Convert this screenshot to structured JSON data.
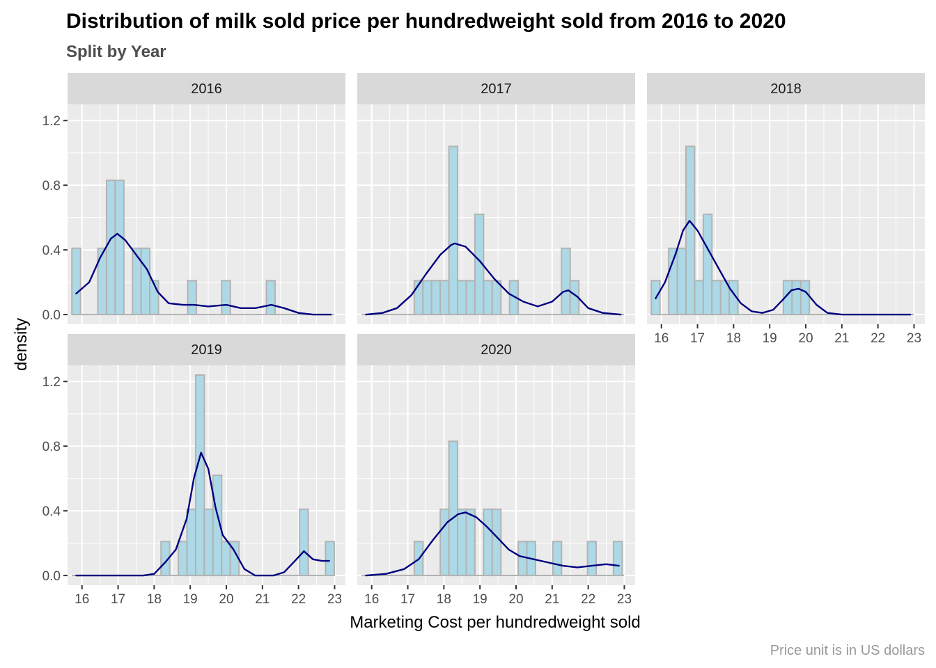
{
  "title": "Distribution of milk sold price per hundredweight sold from 2016 to 2020",
  "subtitle": "Split by Year",
  "caption": "Price unit is in US dollars",
  "chart_data": {
    "type": "histogram",
    "facet_by": "Year",
    "xlabel": "Marketing Cost per hundredweight sold",
    "ylabel": "density",
    "xlim": [
      15.6,
      23.3
    ],
    "ylim": [
      -0.06,
      1.3
    ],
    "x_ticks": [
      16,
      17,
      18,
      19,
      20,
      21,
      22,
      23
    ],
    "y_ticks": [
      0.0,
      0.4,
      0.8,
      1.2
    ],
    "y_tick_labels": [
      "0.0",
      "0.4",
      "0.8",
      "1.2"
    ],
    "bin_width": 0.24,
    "colors": {
      "bar_fill": "#add8e6",
      "bar_outline": "#b3b3b3",
      "density_line": "#000080",
      "panel_bg": "#ebebeb",
      "strip_bg": "#d9d9d9",
      "grid": "#ffffff"
    },
    "grid": true,
    "panels": [
      {
        "label": "2016",
        "bars": [
          {
            "x": 15.84,
            "density": 0.41
          },
          {
            "x": 16.56,
            "density": 0.41
          },
          {
            "x": 16.8,
            "density": 0.83
          },
          {
            "x": 17.04,
            "density": 0.83
          },
          {
            "x": 17.52,
            "density": 0.41
          },
          {
            "x": 17.76,
            "density": 0.41
          },
          {
            "x": 18.0,
            "density": 0.21
          },
          {
            "x": 19.05,
            "density": 0.21
          },
          {
            "x": 19.99,
            "density": 0.21
          },
          {
            "x": 21.23,
            "density": 0.21
          }
        ],
        "density_curve": [
          [
            15.84,
            0.13
          ],
          [
            16.2,
            0.2
          ],
          [
            16.5,
            0.35
          ],
          [
            16.8,
            0.47
          ],
          [
            16.98,
            0.5
          ],
          [
            17.2,
            0.46
          ],
          [
            17.5,
            0.37
          ],
          [
            17.8,
            0.28
          ],
          [
            18.1,
            0.14
          ],
          [
            18.4,
            0.07
          ],
          [
            18.8,
            0.06
          ],
          [
            19.1,
            0.06
          ],
          [
            19.5,
            0.05
          ],
          [
            20.0,
            0.06
          ],
          [
            20.4,
            0.04
          ],
          [
            20.8,
            0.04
          ],
          [
            21.25,
            0.06
          ],
          [
            21.6,
            0.04
          ],
          [
            22.0,
            0.01
          ],
          [
            22.4,
            0.0
          ],
          [
            22.9,
            0.0
          ]
        ]
      },
      {
        "label": "2017",
        "bars": [
          {
            "x": 17.3,
            "density": 0.21
          },
          {
            "x": 17.54,
            "density": 0.21
          },
          {
            "x": 17.78,
            "density": 0.21
          },
          {
            "x": 18.02,
            "density": 0.21
          },
          {
            "x": 18.26,
            "density": 1.04
          },
          {
            "x": 18.5,
            "density": 0.21
          },
          {
            "x": 18.74,
            "density": 0.21
          },
          {
            "x": 18.98,
            "density": 0.62
          },
          {
            "x": 19.22,
            "density": 0.21
          },
          {
            "x": 19.46,
            "density": 0.21
          },
          {
            "x": 19.94,
            "density": 0.21
          },
          {
            "x": 21.38,
            "density": 0.41
          },
          {
            "x": 21.62,
            "density": 0.21
          }
        ],
        "density_curve": [
          [
            15.84,
            0.0
          ],
          [
            16.3,
            0.01
          ],
          [
            16.7,
            0.04
          ],
          [
            17.1,
            0.12
          ],
          [
            17.5,
            0.25
          ],
          [
            17.9,
            0.37
          ],
          [
            18.2,
            0.43
          ],
          [
            18.3,
            0.44
          ],
          [
            18.6,
            0.42
          ],
          [
            19.0,
            0.33
          ],
          [
            19.4,
            0.22
          ],
          [
            19.8,
            0.13
          ],
          [
            20.2,
            0.08
          ],
          [
            20.6,
            0.05
          ],
          [
            21.0,
            0.08
          ],
          [
            21.3,
            0.14
          ],
          [
            21.45,
            0.15
          ],
          [
            21.7,
            0.11
          ],
          [
            22.0,
            0.04
          ],
          [
            22.4,
            0.01
          ],
          [
            22.9,
            0.0
          ]
        ]
      },
      {
        "label": "2018",
        "bars": [
          {
            "x": 15.84,
            "density": 0.21
          },
          {
            "x": 16.32,
            "density": 0.41
          },
          {
            "x": 16.56,
            "density": 0.41
          },
          {
            "x": 16.8,
            "density": 1.04
          },
          {
            "x": 17.04,
            "density": 0.21
          },
          {
            "x": 17.28,
            "density": 0.62
          },
          {
            "x": 17.52,
            "density": 0.21
          },
          {
            "x": 17.76,
            "density": 0.21
          },
          {
            "x": 18.0,
            "density": 0.21
          },
          {
            "x": 19.5,
            "density": 0.21
          },
          {
            "x": 19.74,
            "density": 0.21
          },
          {
            "x": 19.98,
            "density": 0.21
          }
        ],
        "density_curve": [
          [
            15.84,
            0.1
          ],
          [
            16.1,
            0.2
          ],
          [
            16.4,
            0.38
          ],
          [
            16.6,
            0.52
          ],
          [
            16.78,
            0.58
          ],
          [
            17.0,
            0.52
          ],
          [
            17.3,
            0.4
          ],
          [
            17.6,
            0.28
          ],
          [
            17.9,
            0.16
          ],
          [
            18.2,
            0.07
          ],
          [
            18.5,
            0.02
          ],
          [
            18.8,
            0.01
          ],
          [
            19.1,
            0.03
          ],
          [
            19.4,
            0.1
          ],
          [
            19.6,
            0.15
          ],
          [
            19.8,
            0.16
          ],
          [
            20.0,
            0.14
          ],
          [
            20.3,
            0.06
          ],
          [
            20.6,
            0.01
          ],
          [
            21.0,
            0.0
          ],
          [
            21.8,
            0.0
          ],
          [
            22.9,
            0.0
          ]
        ]
      },
      {
        "label": "2019",
        "bars": [
          {
            "x": 18.31,
            "density": 0.21
          },
          {
            "x": 18.79,
            "density": 0.21
          },
          {
            "x": 19.03,
            "density": 0.41
          },
          {
            "x": 19.27,
            "density": 1.24
          },
          {
            "x": 19.51,
            "density": 0.41
          },
          {
            "x": 19.75,
            "density": 0.62
          },
          {
            "x": 19.99,
            "density": 0.21
          },
          {
            "x": 20.23,
            "density": 0.21
          },
          {
            "x": 22.15,
            "density": 0.41
          },
          {
            "x": 22.87,
            "density": 0.21
          }
        ],
        "density_curve": [
          [
            15.84,
            0.0
          ],
          [
            17.0,
            0.0
          ],
          [
            17.7,
            0.0
          ],
          [
            18.0,
            0.01
          ],
          [
            18.3,
            0.08
          ],
          [
            18.6,
            0.16
          ],
          [
            18.9,
            0.35
          ],
          [
            19.1,
            0.6
          ],
          [
            19.3,
            0.76
          ],
          [
            19.5,
            0.66
          ],
          [
            19.7,
            0.42
          ],
          [
            19.9,
            0.25
          ],
          [
            20.2,
            0.16
          ],
          [
            20.5,
            0.04
          ],
          [
            20.8,
            0.0
          ],
          [
            21.3,
            0.0
          ],
          [
            21.6,
            0.02
          ],
          [
            21.9,
            0.09
          ],
          [
            22.15,
            0.15
          ],
          [
            22.4,
            0.1
          ],
          [
            22.65,
            0.09
          ],
          [
            22.85,
            0.09
          ]
        ]
      },
      {
        "label": "2020",
        "bars": [
          {
            "x": 17.3,
            "density": 0.21
          },
          {
            "x": 18.02,
            "density": 0.41
          },
          {
            "x": 18.26,
            "density": 0.83
          },
          {
            "x": 18.5,
            "density": 0.41
          },
          {
            "x": 18.74,
            "density": 0.41
          },
          {
            "x": 19.22,
            "density": 0.41
          },
          {
            "x": 19.46,
            "density": 0.41
          },
          {
            "x": 20.18,
            "density": 0.21
          },
          {
            "x": 20.42,
            "density": 0.21
          },
          {
            "x": 21.14,
            "density": 0.21
          },
          {
            "x": 22.1,
            "density": 0.21
          },
          {
            "x": 22.82,
            "density": 0.21
          }
        ],
        "density_curve": [
          [
            15.84,
            0.0
          ],
          [
            16.4,
            0.01
          ],
          [
            16.9,
            0.04
          ],
          [
            17.3,
            0.1
          ],
          [
            17.7,
            0.22
          ],
          [
            18.1,
            0.33
          ],
          [
            18.4,
            0.38
          ],
          [
            18.6,
            0.39
          ],
          [
            18.9,
            0.36
          ],
          [
            19.2,
            0.3
          ],
          [
            19.5,
            0.23
          ],
          [
            19.8,
            0.16
          ],
          [
            20.1,
            0.12
          ],
          [
            20.5,
            0.1
          ],
          [
            20.9,
            0.08
          ],
          [
            21.3,
            0.06
          ],
          [
            21.7,
            0.05
          ],
          [
            22.1,
            0.06
          ],
          [
            22.5,
            0.07
          ],
          [
            22.85,
            0.06
          ]
        ]
      }
    ]
  }
}
